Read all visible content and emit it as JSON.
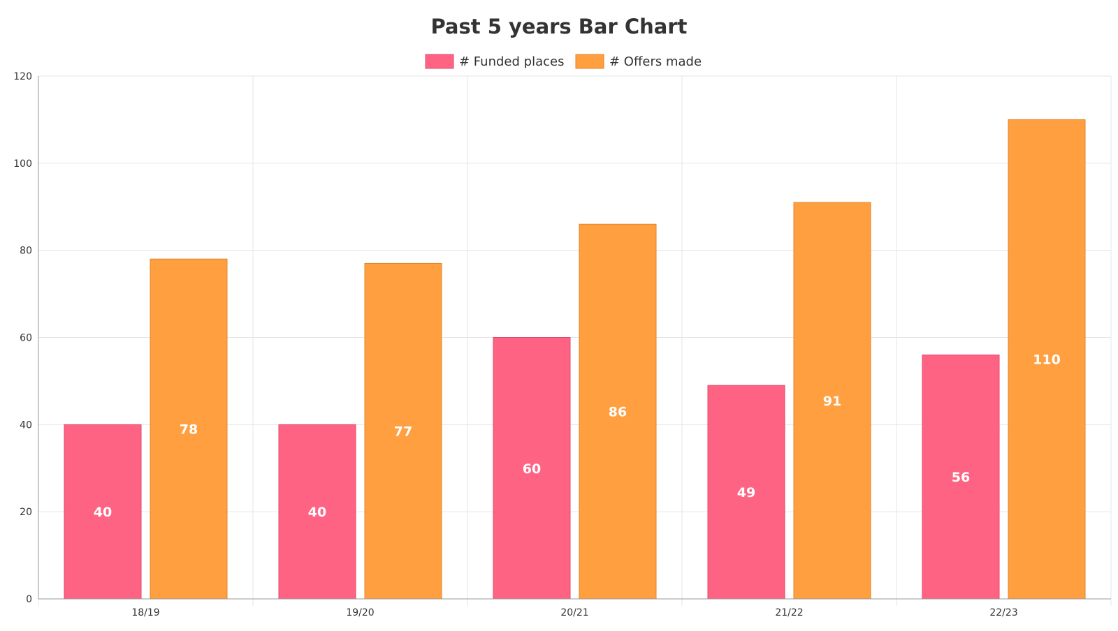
{
  "chart_data": {
    "type": "bar",
    "title": "Past 5 years Bar Chart",
    "xlabel": "",
    "ylabel": "",
    "categories": [
      "18/19",
      "19/20",
      "20/21",
      "21/22",
      "22/23"
    ],
    "series": [
      {
        "name": "# Funded places",
        "values": [
          40,
          40,
          60,
          49,
          56
        ],
        "color": "#FF6384",
        "border": "#E04A6B"
      },
      {
        "name": "# Offers made",
        "values": [
          78,
          77,
          86,
          91,
          110
        ],
        "color": "#FF9F40",
        "border": "#E0852A"
      }
    ],
    "ylim": [
      0,
      120
    ],
    "yticks": [
      0,
      20,
      40,
      60,
      80,
      100,
      120
    ],
    "grid": true,
    "legend": "top-center",
    "data_labels": true
  }
}
